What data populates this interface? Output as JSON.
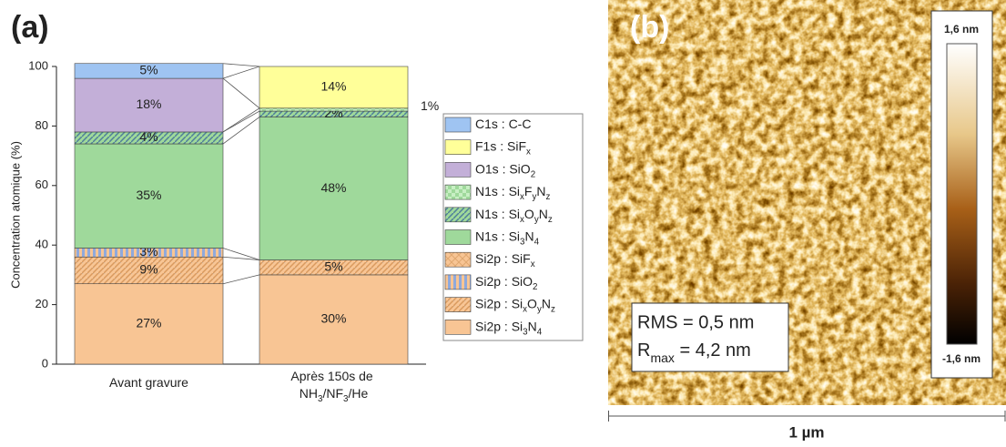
{
  "chart_data": {
    "type": "stacked-bar",
    "panel_label": "(a)",
    "ylabel": "Concentration atomique (%)",
    "categories": [
      "Avant gravure",
      "Après 150s de NH3/NF3/He"
    ],
    "ylim": [
      0,
      100
    ],
    "yticks": [
      0,
      20,
      40,
      60,
      80,
      100
    ],
    "series": [
      {
        "name": "Si2p : Si3N4",
        "color": "#f8c594",
        "hatch": "none",
        "values": [
          27,
          30
        ],
        "value_labels": [
          "27%",
          "30%"
        ]
      },
      {
        "name": "Si2p : SixOyNz",
        "color": "#f8c594",
        "hatch": "diagonal",
        "values": [
          9,
          5
        ],
        "value_labels": [
          "9%",
          "5%"
        ]
      },
      {
        "name": "Si2p : SiO2",
        "color": "#8fa9dc",
        "hatch": "vertical",
        "values": [
          3,
          null
        ],
        "value_labels": [
          "3%",
          null
        ]
      },
      {
        "name": "Si2p : SiFx",
        "color": "#f8c594",
        "hatch": "cross",
        "values": [
          null,
          null
        ],
        "value_labels": [
          null,
          null
        ]
      },
      {
        "name": "N1s : Si3N4",
        "color": "#9fd99b",
        "hatch": "none",
        "values": [
          35,
          48
        ],
        "value_labels": [
          "35%",
          "48%"
        ]
      },
      {
        "name": "N1s : SixOyNz",
        "color": "#9fd99b",
        "hatch": "diagonal",
        "values": [
          4,
          2
        ],
        "value_labels": [
          "4%",
          "2%"
        ]
      },
      {
        "name": "N1s : SixFyNz",
        "color": "#c8efc4",
        "hatch": "checker",
        "values": [
          null,
          1
        ],
        "value_labels": [
          null,
          "1%"
        ]
      },
      {
        "name": "O1s : SiO2",
        "color": "#c3afd8",
        "hatch": "none",
        "values": [
          18,
          null
        ],
        "value_labels": [
          "18%",
          null
        ]
      },
      {
        "name": "F1s : SiFx",
        "color": "#ffff99",
        "hatch": "none",
        "values": [
          null,
          14
        ],
        "value_labels": [
          null,
          "14%"
        ]
      },
      {
        "name": "C1s : C-C",
        "color": "#9fc4f2",
        "hatch": "none",
        "values": [
          5,
          null
        ],
        "value_labels": [
          "5%",
          null
        ]
      }
    ]
  },
  "afm": {
    "panel_label": "(b)",
    "colorbar_max": "1,6 nm",
    "colorbar_min": "-1,6 nm",
    "rms": "RMS = 0,5 nm",
    "rmax": {
      "symbol": "R",
      "subscript": "max",
      "rest": " = 4,2 nm"
    },
    "scale_bar": "1 µm"
  }
}
